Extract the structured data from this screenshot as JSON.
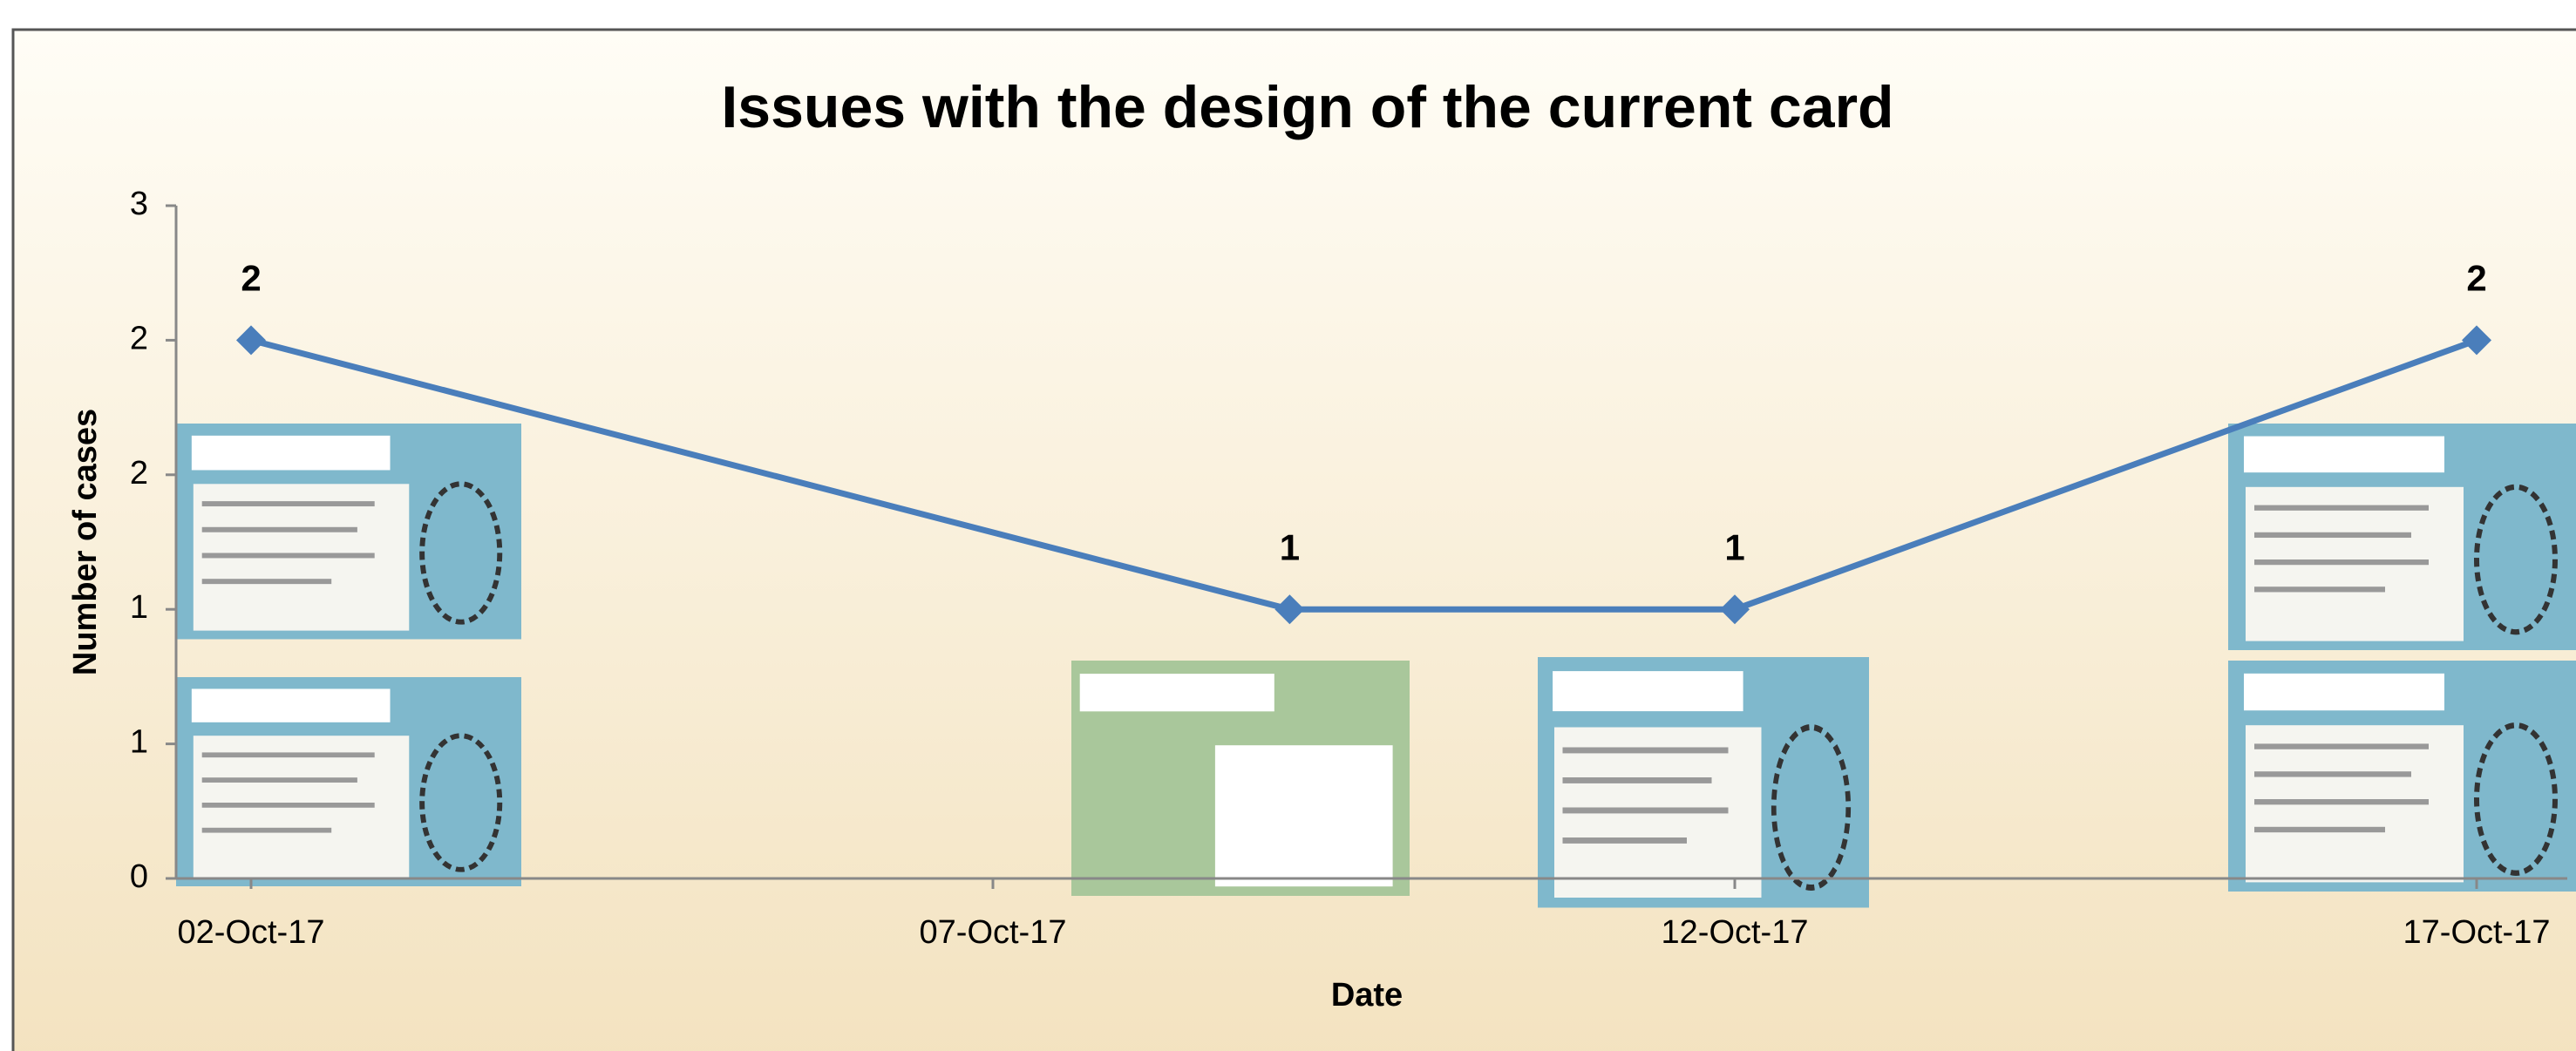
{
  "chart_data": {
    "type": "line",
    "title": "Issues with the design of the current card",
    "x_label": "Date",
    "y_label": "Number of cases",
    "x": [
      "02-Oct-17",
      "09-Oct-17",
      "12-Oct-17",
      "17-Oct-17"
    ],
    "series": [
      {
        "name": "Number of cases",
        "color": "#4a7ebb",
        "values": [
          2,
          1,
          1,
          2
        ]
      }
    ],
    "xlim": [
      "02-Oct-17",
      "17-Oct-17"
    ],
    "xticks": [
      "02-Oct-17",
      "07-Oct-17",
      "12-Oct-17",
      "17-Oct-17"
    ],
    "ylim": [
      0,
      2.5
    ],
    "yticks": [
      0,
      {
        "value": 0.5,
        "label": "1"
      },
      1,
      {
        "value": 1.5,
        "label": "2"
      },
      2,
      {
        "value": 2.5,
        "label": "3"
      }
    ],
    "grid": false
  }
}
